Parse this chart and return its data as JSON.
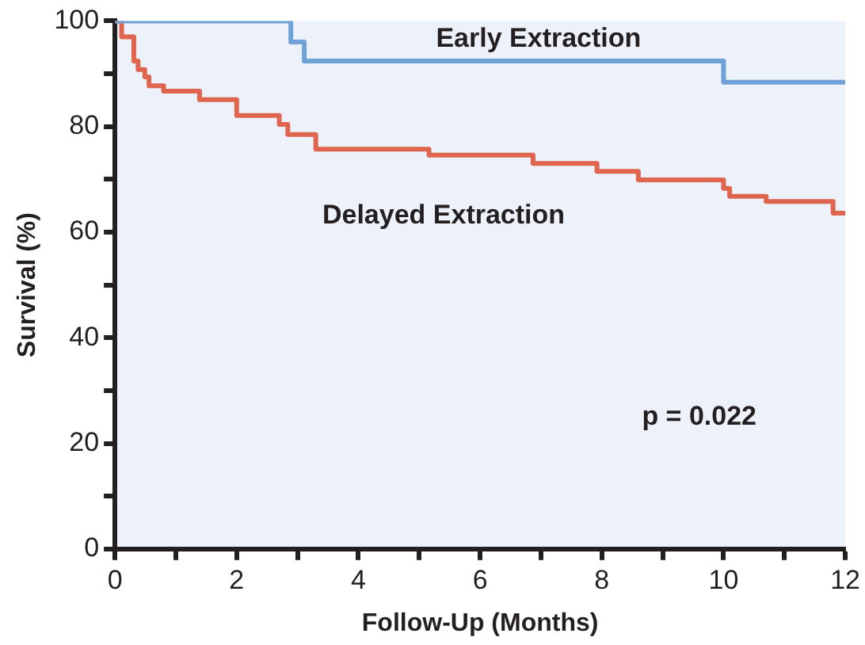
{
  "chart_data": {
    "type": "step",
    "xlabel": "Follow-Up (Months)",
    "ylabel": "Survival (%)",
    "xlim": [
      0,
      12
    ],
    "ylim": [
      0,
      100
    ],
    "xticks": [
      0,
      {
        "value": 1,
        "label": null
      },
      2,
      {
        "value": 3,
        "label": null
      },
      4,
      {
        "value": 5,
        "label": null
      },
      6,
      {
        "value": 7,
        "label": null
      },
      8,
      {
        "value": 9,
        "label": null
      },
      10,
      {
        "value": 11,
        "label": null
      },
      12
    ],
    "yticks": [
      0,
      {
        "value": 10,
        "label": null
      },
      20,
      {
        "value": 30,
        "label": null
      },
      40,
      {
        "value": 50,
        "label": null
      },
      60,
      {
        "value": 70,
        "label": null
      },
      80,
      {
        "value": 90,
        "label": null
      },
      100
    ],
    "grid": false,
    "legend": false,
    "marker": "none",
    "line_style": "solid",
    "annotations": [
      "p = 0.022"
    ],
    "series": [
      {
        "name": "Early Extraction",
        "color": "#6fa3d8",
        "x": [
          0,
          2.89,
          3.11,
          10.0,
          12
        ],
        "values": [
          100,
          96,
          92.4,
          88.4,
          88.4
        ]
      },
      {
        "name": "Delayed Extraction",
        "color": "#e0654f",
        "x": [
          0,
          0.11,
          0.31,
          0.38,
          0.49,
          0.56,
          0.8,
          1.39,
          2.0,
          2.7,
          2.84,
          3.3,
          5.16,
          6.87,
          7.92,
          8.6,
          10.0,
          10.1,
          10.7,
          11.8,
          12
        ],
        "values": [
          100,
          97,
          92.4,
          90.8,
          89.4,
          87.7,
          86.7,
          85.1,
          82.1,
          80.4,
          78.5,
          75.7,
          74.6,
          73.0,
          71.5,
          69.9,
          68.3,
          66.8,
          65.8,
          63.6,
          63.6
        ]
      }
    ]
  }
}
